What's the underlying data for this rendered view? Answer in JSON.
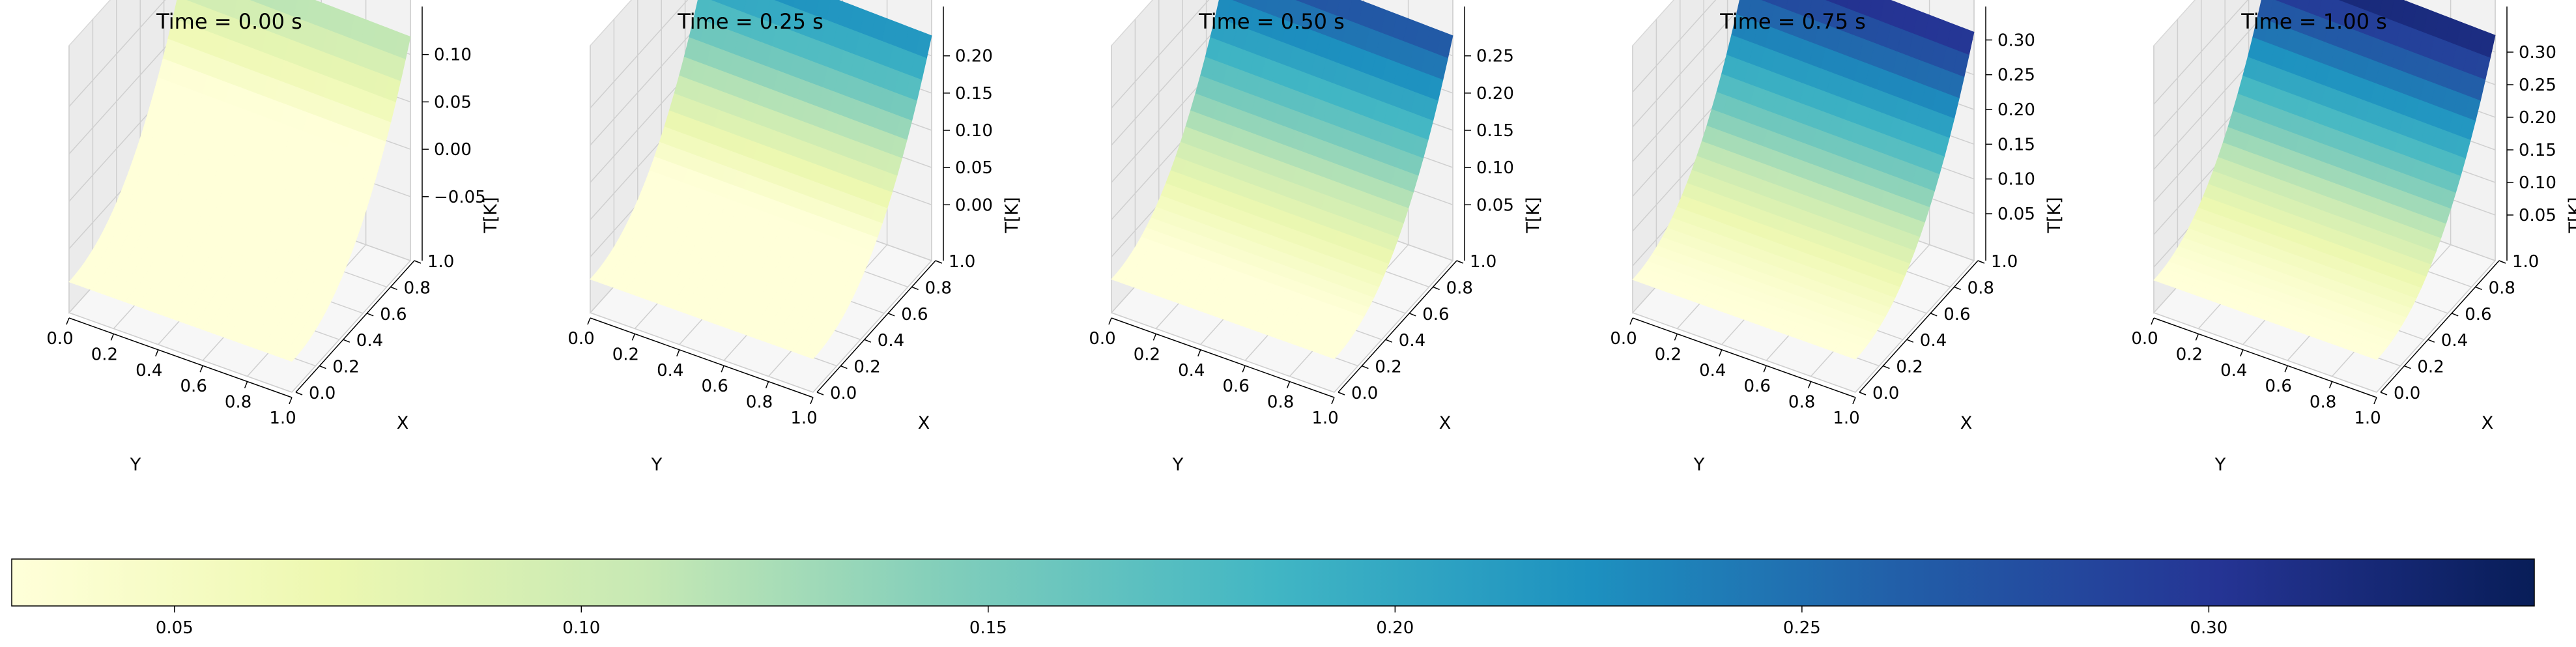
{
  "colormap": {
    "name": "YlGnBu",
    "stops": [
      "#ffffd9",
      "#edf8b1",
      "#c7e9b4",
      "#7fcdbb",
      "#41b6c4",
      "#1d91c0",
      "#225ea8",
      "#253494",
      "#081d58"
    ]
  },
  "chart_data": [
    {
      "type": "surface3d",
      "title": "Time = 0.00 s",
      "xlabel": "Y",
      "ylabel": "X",
      "zlabel": "T[K]",
      "x_ticks": [
        "0.0",
        "0.2",
        "0.4",
        "0.6",
        "0.8",
        "1.0"
      ],
      "y_ticks": [
        "0.0",
        "0.2",
        "0.4",
        "0.6",
        "0.8",
        "1.0"
      ],
      "z_ticks": [
        -0.05,
        0.0,
        0.05,
        0.1
      ],
      "z_tick_labels": [
        "−0.05",
        "0.00",
        "0.05",
        "0.10"
      ],
      "zlim": [
        -0.09,
        0.13
      ],
      "surface_range": [
        -0.085,
        0.125
      ]
    },
    {
      "type": "surface3d",
      "title": "Time = 0.25 s",
      "xlabel": "Y",
      "ylabel": "X",
      "zlabel": "T[K]",
      "x_ticks": [
        "0.0",
        "0.2",
        "0.4",
        "0.6",
        "0.8",
        "1.0"
      ],
      "y_ticks": [
        "0.0",
        "0.2",
        "0.4",
        "0.6",
        "0.8",
        "1.0"
      ],
      "z_ticks": [
        0.0,
        0.05,
        0.1,
        0.15,
        0.2
      ],
      "z_tick_labels": [
        "0.00",
        "0.05",
        "0.10",
        "0.15",
        "0.20"
      ],
      "zlim": [
        -0.04,
        0.24
      ],
      "surface_range": [
        -0.03,
        0.235
      ]
    },
    {
      "type": "surface3d",
      "title": "Time = 0.50 s",
      "xlabel": "Y",
      "ylabel": "X",
      "zlabel": "T[K]",
      "x_ticks": [
        "0.0",
        "0.2",
        "0.4",
        "0.6",
        "0.8",
        "1.0"
      ],
      "y_ticks": [
        "0.0",
        "0.2",
        "0.4",
        "0.6",
        "0.8",
        "1.0"
      ],
      "z_ticks": [
        0.05,
        0.1,
        0.15,
        0.2,
        0.25
      ],
      "z_tick_labels": [
        "0.05",
        "0.10",
        "0.15",
        "0.20",
        "0.25"
      ],
      "zlim": [
        0.01,
        0.29
      ],
      "surface_range": [
        0.02,
        0.285
      ]
    },
    {
      "type": "surface3d",
      "title": "Time = 0.75 s",
      "xlabel": "Y",
      "ylabel": "X",
      "zlabel": "T[K]",
      "x_ticks": [
        "0.0",
        "0.2",
        "0.4",
        "0.6",
        "0.8",
        "1.0"
      ],
      "y_ticks": [
        "0.0",
        "0.2",
        "0.4",
        "0.6",
        "0.8",
        "1.0"
      ],
      "z_ticks": [
        0.05,
        0.1,
        0.15,
        0.2,
        0.25,
        0.3
      ],
      "z_tick_labels": [
        "0.05",
        "0.10",
        "0.15",
        "0.20",
        "0.25",
        "0.30"
      ],
      "zlim": [
        0.02,
        0.32
      ],
      "surface_range": [
        0.03,
        0.32
      ]
    },
    {
      "type": "surface3d",
      "title": "Time = 1.00 s",
      "xlabel": "Y",
      "ylabel": "X",
      "zlabel": "T[K]",
      "x_ticks": [
        "0.0",
        "0.2",
        "0.4",
        "0.6",
        "0.8",
        "1.0"
      ],
      "y_ticks": [
        "0.0",
        "0.2",
        "0.4",
        "0.6",
        "0.8",
        "1.0"
      ],
      "z_ticks": [
        0.05,
        0.1,
        0.15,
        0.2,
        0.25,
        0.3
      ],
      "z_tick_labels": [
        "0.05",
        "0.10",
        "0.15",
        "0.20",
        "0.25",
        "0.30"
      ],
      "zlim": [
        0.02,
        0.34
      ],
      "surface_range": [
        0.03,
        0.335
      ]
    }
  ],
  "colorbar": {
    "orientation": "horizontal",
    "range": [
      0.03,
      0.34
    ],
    "ticks": [
      0.05,
      0.1,
      0.15,
      0.2,
      0.25,
      0.3
    ],
    "tick_labels": [
      "0.05",
      "0.10",
      "0.15",
      "0.20",
      "0.25",
      "0.30"
    ]
  }
}
